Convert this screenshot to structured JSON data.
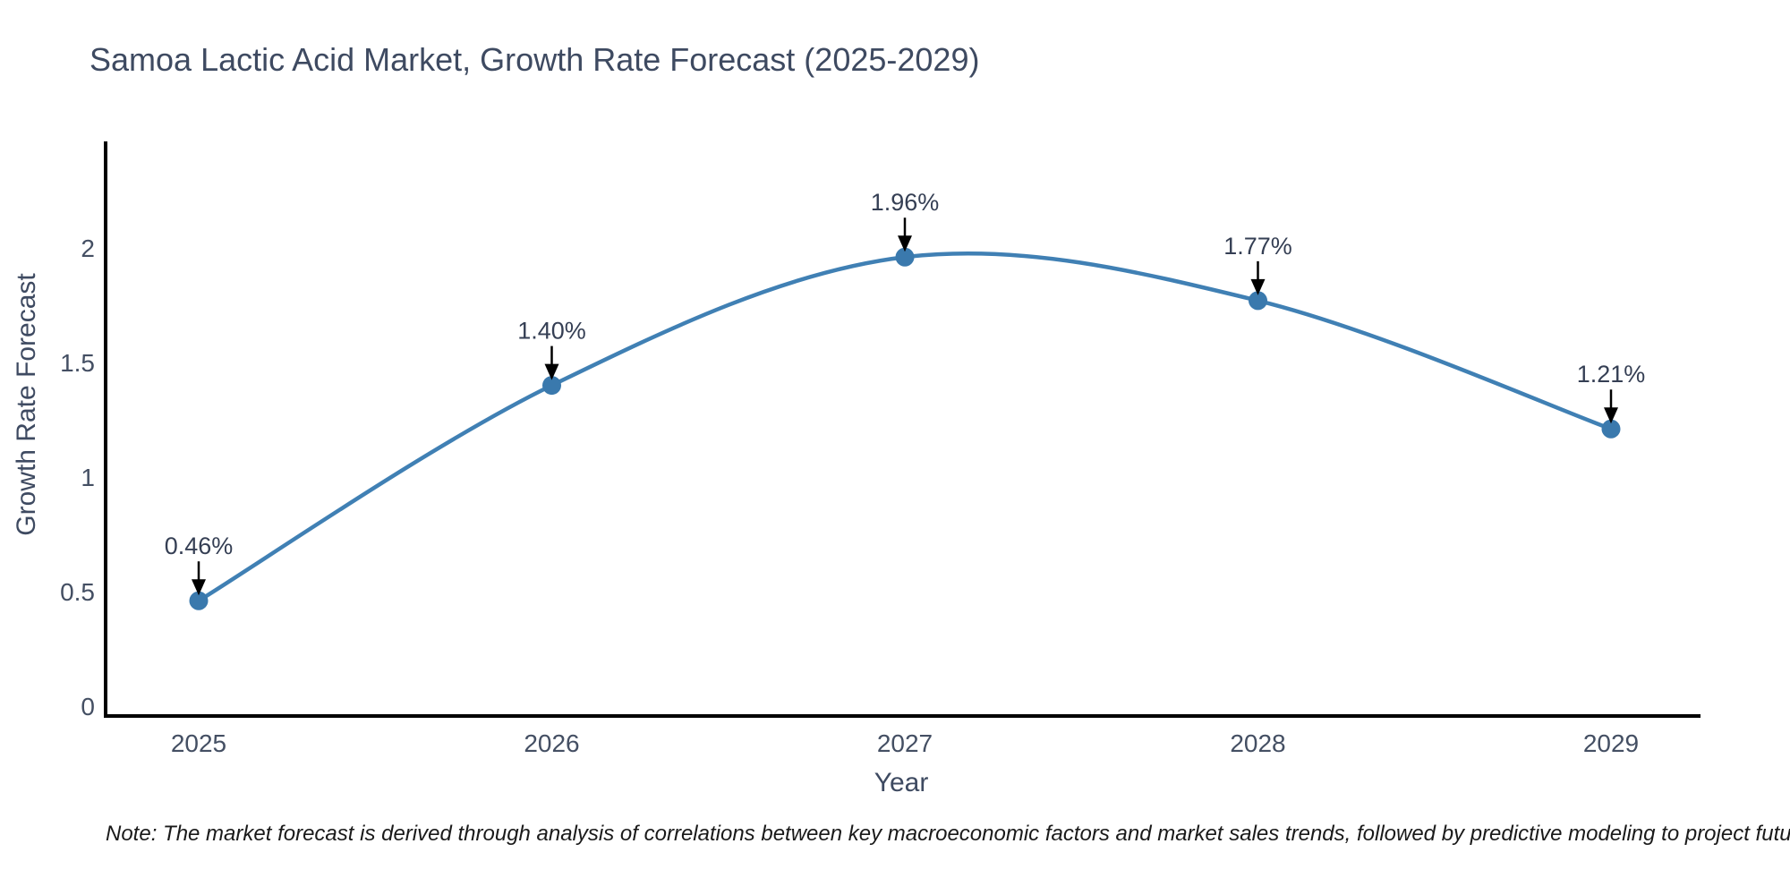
{
  "title": "Samoa Lactic Acid Market, Growth Rate Forecast (2025-2029)",
  "note": "Note: The market forecast is derived through analysis of correlations between key macroeconomic factors and market sales trends, followed by predictive modeling to project future sales",
  "chart_data": {
    "type": "line",
    "title": "Samoa Lactic Acid Market, Growth Rate Forecast (2025-2029)",
    "xlabel": "Year",
    "ylabel": "Growth Rate Forecast",
    "x": [
      2025,
      2026,
      2027,
      2028,
      2029
    ],
    "xtick_labels": [
      "2025",
      "2026",
      "2027",
      "2028",
      "2029"
    ],
    "values": [
      0.46,
      1.4,
      1.96,
      1.77,
      1.21
    ],
    "point_labels": [
      "0.46%",
      "1.40%",
      "1.96%",
      "1.77%",
      "1.21%"
    ],
    "yticks": [
      0,
      0.5,
      1,
      1.5,
      2
    ],
    "ytick_labels": [
      "0",
      "0.5",
      "1",
      "1.5",
      "2"
    ],
    "ylim": [
      0,
      2.46
    ],
    "line_shape": "spline",
    "grid": false,
    "legend": "none",
    "colors": {
      "line": "#4080b4",
      "marker": "#3a79ad",
      "axis": "#000000",
      "arrow": "#000000",
      "title_text": "#3e4a61",
      "tick_text": "#444f63",
      "annotation_text": "#353f54",
      "note_text": "#1a1a1a",
      "background": "#ffffff"
    }
  }
}
